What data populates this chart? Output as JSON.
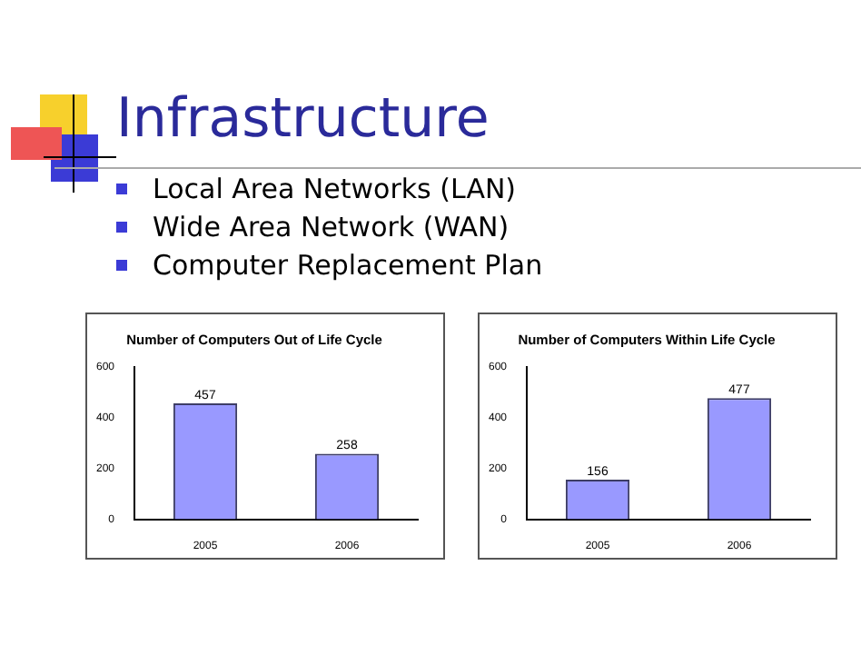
{
  "chart_data": [
    {
      "type": "bar",
      "title": "Number of Computers Out of Life Cycle",
      "categories": [
        "2005",
        "2006"
      ],
      "values": [
        457,
        258
      ],
      "color": "#9999ff",
      "ylim": [
        0,
        600
      ],
      "yticks": [
        0,
        200,
        400,
        600
      ],
      "data_labels": true,
      "annotations": [
        "Infrastructure",
        "Local Area Networks (LAN)",
        "Wide Area Network (WAN)",
        "Computer Replacement Plan"
      ]
    },
    {
      "type": "bar",
      "title": "Number of Computers Within Life Cycle",
      "categories": [
        "2005",
        "2006"
      ],
      "values": [
        156,
        477
      ],
      "color": "#9999ff",
      "ylim": [
        0,
        600
      ],
      "yticks": [
        0,
        200,
        400,
        600
      ],
      "data_labels": true
    }
  ]
}
